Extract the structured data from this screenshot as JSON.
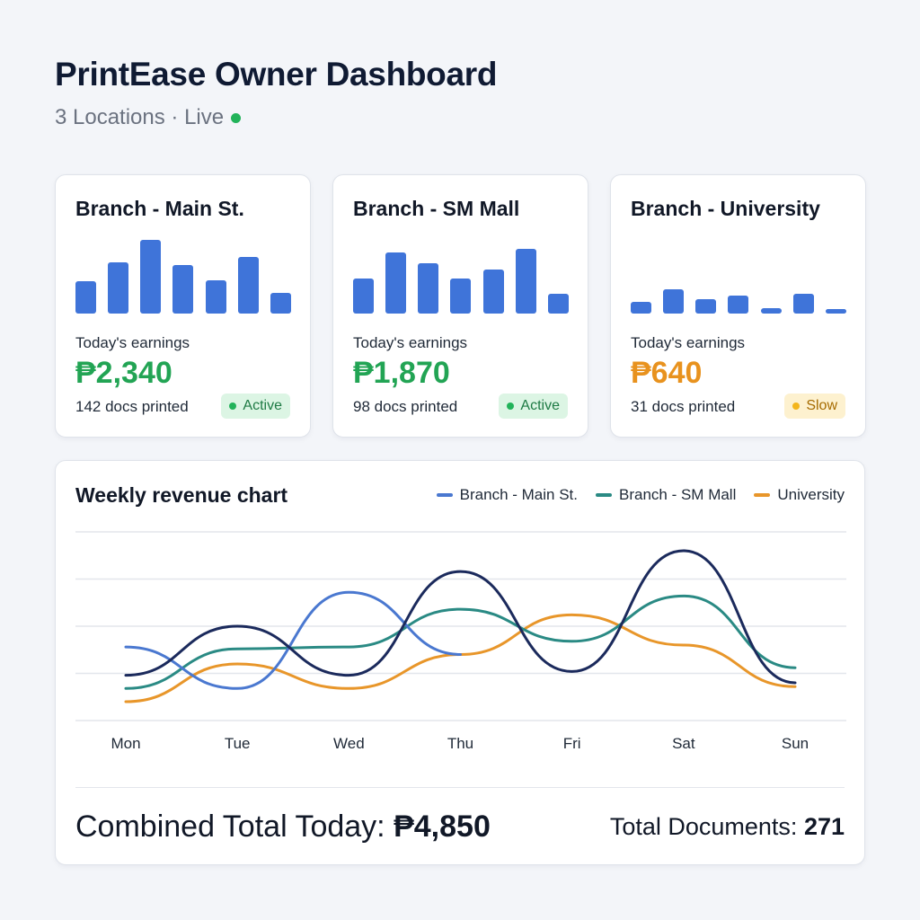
{
  "header": {
    "title": "PrintEase Owner Dashboard",
    "subtitle": "3 Locations · Live",
    "live_color": "#22b35a"
  },
  "branches": [
    {
      "name": "Branch - Main St.",
      "bars": [
        35,
        56,
        80,
        53,
        36,
        61,
        22
      ],
      "earnings_label": "Today's earnings",
      "earnings": "₱2,340",
      "earnings_color": "#22a454",
      "docs": "142 docs printed",
      "status": "Active",
      "status_type": "active"
    },
    {
      "name": "Branch - SM Mall",
      "bars": [
        38,
        66,
        55,
        38,
        48,
        70,
        21
      ],
      "earnings_label": "Today's earnings",
      "earnings": "₱1,870",
      "earnings_color": "#22a454",
      "docs": "98 docs printed",
      "status": "Active",
      "status_type": "active"
    },
    {
      "name": "Branch - University",
      "bars": [
        13,
        26,
        16,
        20,
        6,
        21,
        5
      ],
      "earnings_label": "Today's earnings",
      "earnings": "₱640",
      "earnings_color": "#e8921e",
      "docs": "31 docs printed",
      "status": "Slow",
      "status_type": "slow"
    }
  ],
  "chart": {
    "title": "Weekly revenue chart",
    "combined_label": "Combined Total Today:",
    "combined_value": "₱4,850",
    "docs_label": "Total Documents:",
    "docs_value": "271"
  },
  "chart_data": {
    "type": "line",
    "categories": [
      "Mon",
      "Tue",
      "Wed",
      "Thu",
      "Fri",
      "Sat",
      "Sun"
    ],
    "ylim": [
      0,
      100
    ],
    "grid": true,
    "legend_placement": "top-right",
    "series": [
      {
        "name": "Branch - Main St.",
        "color": "#4a78d0",
        "values": [
          39,
          17,
          68,
          35,
          null,
          null,
          null
        ]
      },
      {
        "name": "Branch - SM Mall",
        "color": "#2a8a84",
        "values": [
          17,
          38,
          39,
          59,
          42,
          66,
          28
        ]
      },
      {
        "name": "University",
        "color": "#e8962a",
        "values": [
          10,
          30,
          17,
          35,
          56,
          40,
          18
        ]
      },
      {
        "color": "#1b2a5c",
        "values": [
          24,
          50,
          24,
          79,
          26,
          90,
          20
        ]
      }
    ]
  }
}
